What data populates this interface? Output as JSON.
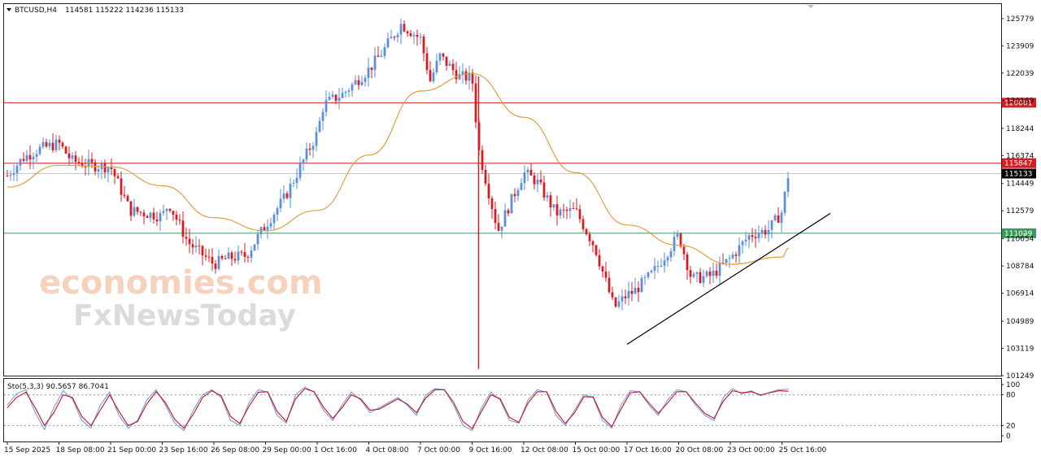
{
  "header": {
    "symbol": "BTCUSD,H4",
    "ohlc": "114581 115222 114236 115133"
  },
  "watermark": {
    "line1": "economies.com",
    "line2": "FxNewsToday"
  },
  "colors": {
    "bull": "#5b8fd6",
    "bear": "#d21f26",
    "ma": "#e0a040",
    "resistance": "#d21f26",
    "support": "#3a9a5a",
    "trendline": "#000000",
    "current_price_tag": "#000000"
  },
  "chart_data": {
    "type": "candlestick",
    "title": "BTCUSD,H4",
    "y_ticks": [
      125779,
      123909,
      122039,
      120169,
      118244,
      116374,
      114449,
      112579,
      110654,
      108784,
      106914,
      104989,
      103119,
      101249
    ],
    "ylim": [
      101249,
      126779
    ],
    "x_ticks": [
      "15 Sep 2025",
      "18 Sep 08:00",
      "21 Sep 00:00",
      "23 Sep 16:00",
      "26 Sep 08:00",
      "29 Sep 00:00",
      "1 Oct 16:00",
      "4 Oct 08:00",
      "7 Oct 00:00",
      "9 Oct 16:00",
      "12 Oct 08:00",
      "15 Oct 00:00",
      "17 Oct 16:00",
      "20 Oct 08:00",
      "23 Oct 00:00",
      "25 Oct 16:00"
    ],
    "horizontal_levels": [
      {
        "value": 120001,
        "label": "120001",
        "color": "#d21f26"
      },
      {
        "value": 115847,
        "label": "115847",
        "color": "#d21f26"
      },
      {
        "value": 111029,
        "label": "11102̶9",
        "color": "#3a9a5a"
      }
    ],
    "current_price": {
      "value": 115133,
      "label": "115133"
    },
    "trendline": {
      "from": {
        "x": "17 Oct 16:00",
        "y": 103400
      },
      "to": {
        "x": "28 Oct 04:00",
        "y": 112400
      }
    },
    "price_path": [
      [
        "15 Sep 2025",
        115000
      ],
      [
        "16 Sep",
        116200
      ],
      [
        "17 Sep",
        116800
      ],
      [
        "18 Sep 08:00",
        117200
      ],
      [
        "19 Sep",
        116000
      ],
      [
        "20 Sep",
        115700
      ],
      [
        "21 Sep 00:00",
        115600
      ],
      [
        "22 Sep",
        112600
      ],
      [
        "23 Sep 16:00",
        112200
      ],
      [
        "24 Sep",
        113100
      ],
      [
        "25 Sep",
        110400
      ],
      [
        "26 Sep 08:00",
        108900
      ],
      [
        "27 Sep",
        109300
      ],
      [
        "28 Sep",
        109500
      ],
      [
        "29 Sep 00:00",
        111600
      ],
      [
        "30 Sep",
        113500
      ],
      [
        "1 Oct 16:00",
        117900
      ],
      [
        "2 Oct",
        119900
      ],
      [
        "3 Oct",
        120600
      ],
      [
        "4 Oct 08:00",
        122300
      ],
      [
        "5 Oct",
        123400
      ],
      [
        "6 Oct",
        125400
      ],
      [
        "7 Oct 00:00",
        124400
      ],
      [
        "7 Oct 12:00",
        121500
      ],
      [
        "8 Oct",
        123200
      ],
      [
        "9 Oct",
        121800
      ],
      [
        "9 Oct 16:00",
        121700
      ],
      [
        "10 Oct",
        116800
      ],
      [
        "11 Oct",
        111200
      ],
      [
        "12 Oct 08:00",
        115200
      ],
      [
        "13 Oct",
        114600
      ],
      [
        "14 Oct",
        112400
      ],
      [
        "15 Oct 00:00",
        112600
      ],
      [
        "16 Oct",
        110100
      ],
      [
        "17 Oct",
        105900
      ],
      [
        "17 Oct 16:00",
        106800
      ],
      [
        "18 Oct",
        107000
      ],
      [
        "19 Oct",
        108300
      ],
      [
        "20 Oct 08:00",
        110900
      ],
      [
        "21 Oct",
        107900
      ],
      [
        "22 Oct",
        108100
      ],
      [
        "23 Oct 00:00",
        109300
      ],
      [
        "24 Oct",
        110900
      ],
      [
        "25 Oct",
        111300
      ],
      [
        "25 Oct 16:00",
        112500
      ],
      [
        "26 Oct",
        115133
      ]
    ],
    "moving_average": [
      [
        "15 Sep 2025",
        114200
      ],
      [
        "18 Sep 08:00",
        115700
      ],
      [
        "21 Sep 00:00",
        115600
      ],
      [
        "23 Sep 16:00",
        114300
      ],
      [
        "26 Sep 08:00",
        112100
      ],
      [
        "29 Sep 00:00",
        111200
      ],
      [
        "1 Oct 16:00",
        112600
      ],
      [
        "4 Oct 08:00",
        116400
      ],
      [
        "7 Oct 00:00",
        120800
      ],
      [
        "9 Oct 16:00",
        122000
      ],
      [
        "12 Oct 08:00",
        119000
      ],
      [
        "15 Oct 00:00",
        115200
      ],
      [
        "17 Oct 16:00",
        111600
      ],
      [
        "20 Oct 08:00",
        110200
      ],
      [
        "23 Oct 00:00",
        108900
      ],
      [
        "25 Oct 16:00",
        109400
      ],
      [
        "26 Oct",
        110000
      ]
    ],
    "stochastic": {
      "label": "Sto(5,3,3) 90.5657 86.7041",
      "ylim": [
        0,
        100
      ],
      "y_ticks": [
        100,
        80,
        20,
        0
      ],
      "levels": [
        80,
        20
      ],
      "k": [
        60,
        82,
        90,
        45,
        12,
        55,
        88,
        72,
        30,
        15,
        60,
        85,
        40,
        15,
        30,
        70,
        90,
        60,
        25,
        10,
        50,
        80,
        90,
        75,
        30,
        20,
        65,
        90,
        85,
        40,
        25,
        80,
        95,
        85,
        50,
        30,
        60,
        85,
        70,
        45,
        55,
        65,
        75,
        60,
        40,
        80,
        92,
        90,
        60,
        20,
        10,
        55,
        85,
        70,
        30,
        25,
        70,
        90,
        85,
        40,
        20,
        50,
        80,
        75,
        30,
        15,
        60,
        88,
        86,
        60,
        40,
        70,
        90,
        86,
        60,
        40,
        30,
        75,
        92,
        82,
        88,
        78,
        85,
        90,
        91
      ],
      "d": [
        55,
        75,
        85,
        55,
        20,
        45,
        80,
        75,
        38,
        20,
        50,
        80,
        48,
        20,
        28,
        62,
        86,
        65,
        32,
        15,
        42,
        75,
        88,
        78,
        38,
        24,
        58,
        85,
        86,
        48,
        28,
        72,
        92,
        86,
        56,
        34,
        55,
        80,
        72,
        50,
        52,
        62,
        72,
        62,
        45,
        74,
        90,
        90,
        65,
        28,
        14,
        48,
        80,
        72,
        36,
        26,
        64,
        86,
        86,
        48,
        24,
        45,
        76,
        76,
        36,
        18,
        52,
        84,
        86,
        64,
        44,
        64,
        86,
        86,
        64,
        44,
        34,
        68,
        88,
        84,
        86,
        80,
        84,
        88,
        87
      ]
    }
  }
}
